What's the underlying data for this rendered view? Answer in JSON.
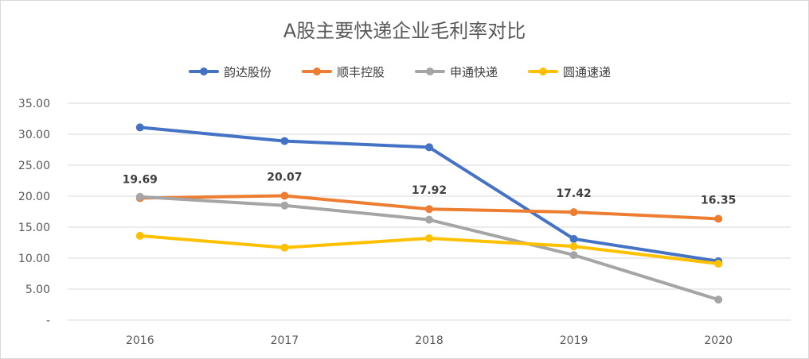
{
  "chart_data": {
    "type": "line",
    "title": "A股主要快递企业毛利率对比",
    "categories": [
      "2016",
      "2017",
      "2018",
      "2019",
      "2020"
    ],
    "ylim": [
      0,
      35
    ],
    "yticks": [
      0,
      5,
      10,
      15,
      20,
      25,
      30,
      35
    ],
    "ytick_labels": [
      "-",
      "5.00",
      "10.00",
      "15.00",
      "20.00",
      "25.00",
      "30.00",
      "35.00"
    ],
    "legend_position": "top",
    "grid": true,
    "series": [
      {
        "name": "韵达股份",
        "color": "#4472C4",
        "values": [
          31.1,
          28.9,
          27.9,
          13.1,
          9.5
        ]
      },
      {
        "name": "顺丰控股",
        "color": "#ED7D31",
        "values": [
          19.69,
          20.07,
          17.92,
          17.42,
          16.35
        ],
        "data_labels": [
          "19.69",
          "20.07",
          "17.92",
          "17.42",
          "16.35"
        ]
      },
      {
        "name": "申通快递",
        "color": "#A5A5A5",
        "values": [
          19.9,
          18.5,
          16.2,
          10.5,
          3.3
        ]
      },
      {
        "name": "圆通速递",
        "color": "#FFC000",
        "values": [
          13.6,
          11.7,
          13.2,
          11.9,
          9.1
        ]
      }
    ]
  }
}
